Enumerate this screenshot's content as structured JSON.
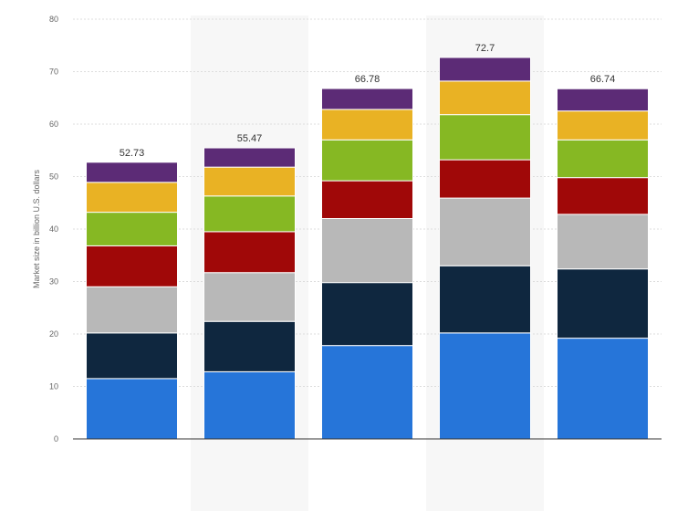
{
  "chart_data": {
    "type": "bar",
    "stacked": true,
    "ylabel": "Market size in billion U.S. dollars",
    "ylim": [
      0,
      80
    ],
    "yticks": [
      "0",
      "10",
      "20",
      "30",
      "40",
      "50",
      "60",
      "70",
      "80"
    ],
    "grid": true,
    "categories": [
      "",
      "",
      "",
      "",
      ""
    ],
    "totals": [
      "52.73",
      "55.47",
      "66.78",
      "72.7",
      "66.74"
    ],
    "series": [
      {
        "color": "#2675d9",
        "values": [
          11.5,
          12.8,
          17.8,
          20.2,
          19.2
        ]
      },
      {
        "color": "#0f273f",
        "values": [
          8.7,
          9.6,
          12.0,
          12.8,
          13.2
        ]
      },
      {
        "color": "#b8b8b8",
        "values": [
          8.8,
          9.3,
          12.2,
          12.9,
          10.4
        ]
      },
      {
        "color": "#a00808",
        "values": [
          7.8,
          7.8,
          7.2,
          7.3,
          7.0
        ]
      },
      {
        "color": "#86b823",
        "values": [
          6.4,
          6.8,
          7.8,
          8.6,
          7.2
        ]
      },
      {
        "color": "#e9b224",
        "values": [
          5.7,
          5.5,
          5.8,
          6.4,
          5.5
        ]
      },
      {
        "color": "#5c2b76",
        "values": [
          3.83,
          3.67,
          3.98,
          4.5,
          4.24
        ]
      }
    ]
  }
}
